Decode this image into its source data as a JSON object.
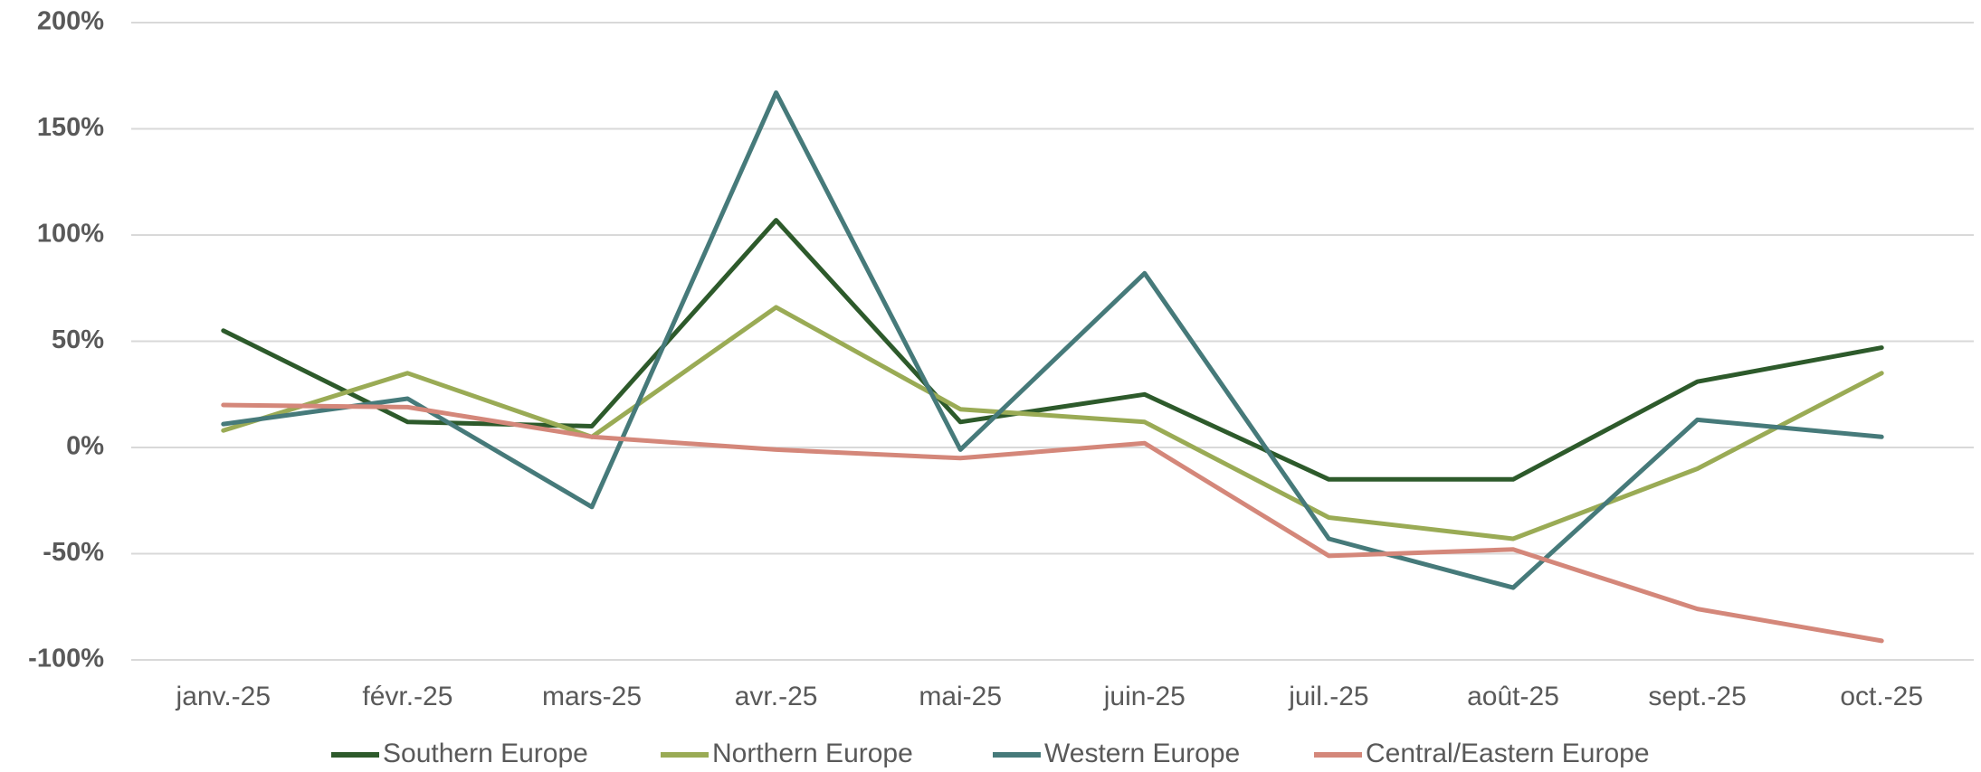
{
  "chart_data": {
    "type": "line",
    "categories": [
      "janv.-25",
      "févr.-25",
      "mars-25",
      "avr.-25",
      "mai-25",
      "juin-25",
      "juil.-25",
      "août-25",
      "sept.-25",
      "oct.-25"
    ],
    "series": [
      {
        "name": "Southern Europe",
        "color": "#2d5a2b",
        "values": [
          55,
          12,
          10,
          107,
          12,
          25,
          -15,
          -15,
          31,
          47
        ]
      },
      {
        "name": "Northern Europe",
        "color": "#9aab55",
        "values": [
          8,
          35,
          5,
          66,
          18,
          12,
          -33,
          -43,
          -10,
          35
        ]
      },
      {
        "name": "Western Europe",
        "color": "#467a7a",
        "values": [
          11,
          23,
          -28,
          167,
          -1,
          82,
          -43,
          -66,
          13,
          5
        ]
      },
      {
        "name": "Central/Eastern Europe",
        "color": "#d4877a",
        "values": [
          20,
          19,
          5,
          -1,
          -5,
          2,
          -51,
          -48,
          -76,
          -91
        ]
      }
    ],
    "ylim": [
      -100,
      200
    ],
    "yticks": [
      {
        "value": -100,
        "label": "-100%"
      },
      {
        "value": -50,
        "label": "-50%"
      },
      {
        "value": 0,
        "label": "0%"
      },
      {
        "value": 50,
        "label": "50%"
      },
      {
        "value": 100,
        "label": "100%"
      },
      {
        "value": 150,
        "label": "150%"
      },
      {
        "value": 200,
        "label": "200%"
      }
    ],
    "grid": true,
    "legend": "bottom"
  }
}
